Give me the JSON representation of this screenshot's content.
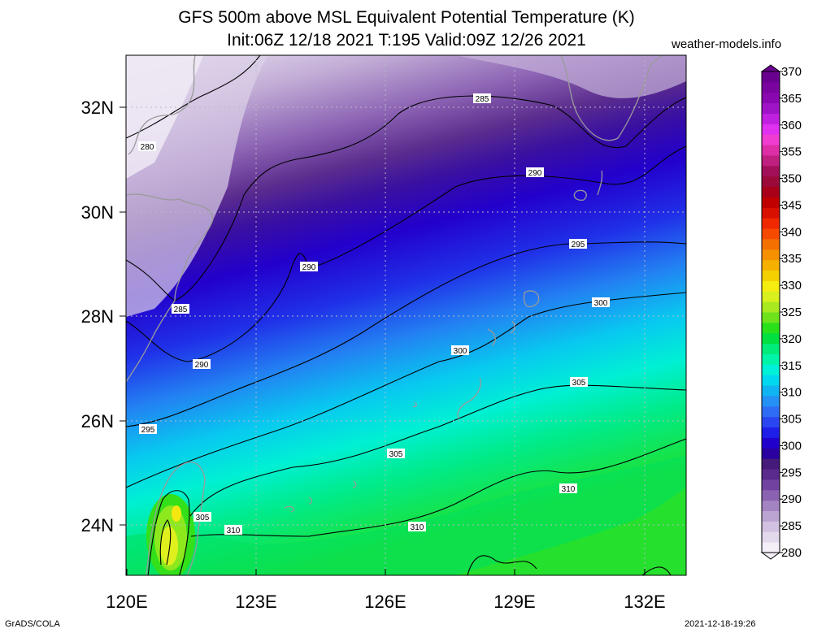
{
  "title_line1": "GFS 500m above MSL Equivalent Potential Temperature (K)",
  "title_line2": "Init:06Z 12/18 2021 T:195 Valid:09Z 12/26 2021",
  "site": "weather-models.info",
  "footer_left": "GrADS/COLA",
  "footer_right": "2021-12-18-19:26",
  "x_ticks": [
    "120E",
    "123E",
    "126E",
    "129E",
    "132E"
  ],
  "y_ticks": [
    "24N",
    "26N",
    "28N",
    "30N",
    "32N"
  ],
  "colorbar": {
    "labels": [
      "280",
      "285",
      "290",
      "295",
      "300",
      "305",
      "310",
      "315",
      "320",
      "325",
      "330",
      "335",
      "340",
      "345",
      "350",
      "355",
      "360",
      "365",
      "370"
    ],
    "colors": [
      "#f3eef7",
      "#e4d9ec",
      "#d2c1e0",
      "#bca4d2",
      "#a383c2",
      "#8b62b2",
      "#7242a0",
      "#5b2a8d",
      "#451a7a",
      "#2a00a0",
      "#2100cc",
      "#1e1ee8",
      "#2a46f0",
      "#2f6cf5",
      "#2490f5",
      "#10b4f2",
      "#00d8f0",
      "#00f0d8",
      "#00f5a8",
      "#00ec7a",
      "#00e040",
      "#2ae01a",
      "#6ee31c",
      "#a8ea1f",
      "#d8f01e",
      "#f5ec10",
      "#f5d000",
      "#f5b000",
      "#f59000",
      "#f57000",
      "#f54a00",
      "#f02800",
      "#d81000",
      "#c00000",
      "#a80018",
      "#9c0a3a",
      "#a2105a",
      "#bf1f7f",
      "#dd2ea8",
      "#f03cd0",
      "#e030f0",
      "#c020e0",
      "#a014c8",
      "#8a08b0",
      "#7a04a0",
      "#6a0090"
    ]
  },
  "contour_labels": [
    "280",
    "285",
    "285",
    "290",
    "290",
    "290",
    "295",
    "295",
    "300",
    "300",
    "305",
    "305",
    "310",
    "310",
    "310",
    "305"
  ]
}
